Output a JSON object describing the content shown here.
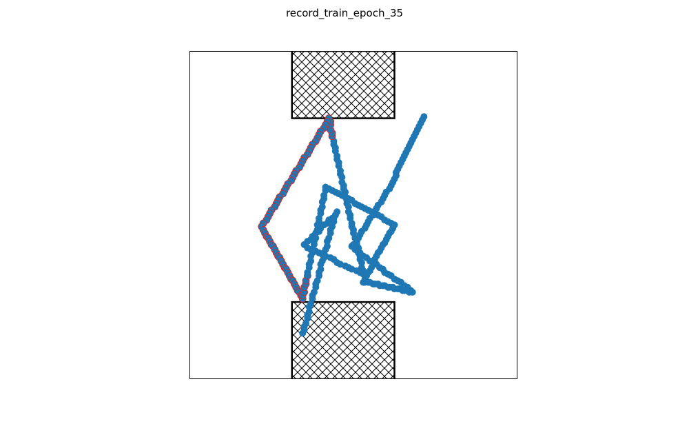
{
  "figure": {
    "title": "record_train_epoch_35"
  },
  "chart_data": {
    "type": "scatter",
    "title": "record_train_epoch_35",
    "xlabel": "",
    "ylabel": "",
    "xlim": [
      -1.0,
      1.0
    ],
    "ylim": [
      -1.0,
      1.0
    ],
    "axes_visible": false,
    "grid": false,
    "colors": {
      "point": "#1f77b4",
      "highlight_edge": "#d62728",
      "obstacle": "#000000"
    },
    "obstacles": [
      {
        "name": "top-obstacle",
        "x": [
          -0.375,
          0.25
        ],
        "y": [
          0.59,
          1.0
        ],
        "hatch": "cross"
      },
      {
        "name": "bottom-obstacle",
        "x": [
          -0.375,
          0.25
        ],
        "y": [
          -1.0,
          -0.53
        ],
        "hatch": "cross"
      }
    ],
    "trajectory": [
      [
        -0.31,
        -0.72
      ],
      [
        -0.3,
        -0.7
      ],
      [
        -0.3,
        -0.68
      ],
      [
        -0.29,
        -0.66
      ],
      [
        -0.28,
        -0.63
      ],
      [
        -0.28,
        -0.61
      ],
      [
        -0.27,
        -0.59
      ],
      [
        -0.27,
        -0.56
      ],
      [
        -0.26,
        -0.54
      ],
      [
        -0.25,
        -0.51
      ],
      [
        -0.25,
        -0.49
      ],
      [
        -0.24,
        -0.47
      ],
      [
        -0.23,
        -0.44
      ],
      [
        -0.23,
        -0.42
      ],
      [
        -0.22,
        -0.4
      ],
      [
        -0.21,
        -0.37
      ],
      [
        -0.21,
        -0.35
      ],
      [
        -0.2,
        -0.33
      ],
      [
        -0.2,
        -0.3
      ],
      [
        -0.19,
        -0.28
      ],
      [
        -0.18,
        -0.26
      ],
      [
        -0.18,
        -0.23
      ],
      [
        -0.17,
        -0.21
      ],
      [
        -0.16,
        -0.19
      ],
      [
        -0.16,
        -0.16
      ],
      [
        -0.15,
        -0.14
      ],
      [
        -0.14,
        -0.11
      ],
      [
        -0.14,
        -0.09
      ],
      [
        -0.13,
        -0.07
      ],
      [
        -0.12,
        -0.04
      ],
      [
        -0.12,
        -0.02
      ],
      [
        -0.11,
        0.0
      ],
      [
        -0.1,
        0.02
      ],
      [
        -0.11,
        0.0
      ],
      [
        -0.13,
        -0.02
      ],
      [
        -0.15,
        -0.03
      ],
      [
        -0.16,
        -0.05
      ],
      [
        -0.18,
        -0.06
      ],
      [
        -0.2,
        -0.08
      ],
      [
        -0.21,
        -0.1
      ],
      [
        -0.23,
        -0.11
      ],
      [
        -0.25,
        -0.13
      ],
      [
        -0.26,
        -0.15
      ],
      [
        -0.28,
        -0.16
      ],
      [
        -0.3,
        -0.18
      ],
      [
        -0.28,
        -0.2
      ],
      [
        -0.26,
        -0.21
      ],
      [
        -0.23,
        -0.22
      ],
      [
        -0.21,
        -0.23
      ],
      [
        -0.19,
        -0.24
      ],
      [
        -0.17,
        -0.25
      ],
      [
        -0.14,
        -0.26
      ],
      [
        -0.12,
        -0.27
      ],
      [
        -0.1,
        -0.29
      ],
      [
        -0.08,
        -0.3
      ],
      [
        -0.05,
        -0.31
      ],
      [
        -0.03,
        -0.32
      ],
      [
        -0.01,
        -0.33
      ],
      [
        0.02,
        -0.34
      ],
      [
        0.04,
        -0.35
      ],
      [
        0.06,
        -0.36
      ],
      [
        0.06,
        -0.34
      ],
      [
        0.05,
        -0.32
      ],
      [
        0.05,
        -0.29
      ],
      [
        0.04,
        -0.27
      ],
      [
        0.04,
        -0.25
      ],
      [
        0.03,
        -0.23
      ],
      [
        0.03,
        -0.2
      ],
      [
        0.02,
        -0.18
      ],
      [
        0.02,
        -0.16
      ],
      [
        0.01,
        -0.14
      ],
      [
        0.0,
        -0.11
      ],
      [
        0.0,
        -0.09
      ],
      [
        -0.01,
        -0.07
      ],
      [
        -0.01,
        -0.05
      ],
      [
        -0.02,
        -0.02
      ],
      [
        -0.02,
        0.0
      ],
      [
        -0.03,
        0.02
      ],
      [
        -0.03,
        0.05
      ],
      [
        -0.04,
        0.07
      ],
      [
        -0.04,
        0.09
      ],
      [
        -0.05,
        0.11
      ],
      [
        -0.05,
        0.14
      ],
      [
        -0.06,
        0.16
      ],
      [
        -0.06,
        0.18
      ],
      [
        -0.07,
        0.2
      ],
      [
        -0.07,
        0.23
      ],
      [
        -0.08,
        0.25
      ],
      [
        -0.08,
        0.27
      ],
      [
        -0.09,
        0.3
      ],
      [
        -0.09,
        0.32
      ],
      [
        -0.1,
        0.34
      ],
      [
        -0.1,
        0.36
      ],
      [
        -0.11,
        0.39
      ],
      [
        -0.11,
        0.41
      ],
      [
        -0.12,
        0.43
      ],
      [
        -0.12,
        0.45
      ],
      [
        -0.13,
        0.48
      ],
      [
        -0.13,
        0.5
      ],
      [
        -0.14,
        0.52
      ],
      [
        -0.14,
        0.55
      ],
      [
        -0.14,
        0.57
      ],
      [
        -0.15,
        0.59
      ],
      [
        -0.16,
        0.57
      ],
      [
        -0.17,
        0.55
      ],
      [
        -0.18,
        0.53
      ],
      [
        -0.2,
        0.51
      ],
      [
        -0.21,
        0.49
      ],
      [
        -0.22,
        0.47
      ],
      [
        -0.23,
        0.45
      ],
      [
        -0.25,
        0.43
      ],
      [
        -0.26,
        0.41
      ],
      [
        -0.27,
        0.39
      ],
      [
        -0.28,
        0.37
      ],
      [
        -0.3,
        0.35
      ],
      [
        -0.31,
        0.33
      ],
      [
        -0.32,
        0.31
      ],
      [
        -0.33,
        0.29
      ],
      [
        -0.35,
        0.27
      ],
      [
        -0.36,
        0.25
      ],
      [
        -0.37,
        0.23
      ],
      [
        -0.38,
        0.21
      ],
      [
        -0.4,
        0.19
      ],
      [
        -0.41,
        0.17
      ],
      [
        -0.42,
        0.15
      ],
      [
        -0.43,
        0.13
      ],
      [
        -0.45,
        0.11
      ],
      [
        -0.46,
        0.09
      ],
      [
        -0.47,
        0.07
      ],
      [
        -0.48,
        0.05
      ],
      [
        -0.5,
        0.03
      ],
      [
        -0.51,
        0.01
      ],
      [
        -0.52,
        -0.01
      ],
      [
        -0.53,
        -0.03
      ],
      [
        -0.55,
        -0.05
      ],
      [
        -0.56,
        -0.07
      ],
      [
        -0.55,
        -0.09
      ],
      [
        -0.54,
        -0.11
      ],
      [
        -0.53,
        -0.13
      ],
      [
        -0.52,
        -0.14
      ],
      [
        -0.51,
        -0.16
      ],
      [
        -0.5,
        -0.18
      ],
      [
        -0.49,
        -0.19
      ],
      [
        -0.48,
        -0.21
      ],
      [
        -0.47,
        -0.23
      ],
      [
        -0.46,
        -0.25
      ],
      [
        -0.45,
        -0.26
      ],
      [
        -0.44,
        -0.28
      ],
      [
        -0.43,
        -0.3
      ],
      [
        -0.42,
        -0.32
      ],
      [
        -0.41,
        -0.33
      ],
      [
        -0.4,
        -0.35
      ],
      [
        -0.39,
        -0.37
      ],
      [
        -0.38,
        -0.39
      ],
      [
        -0.37,
        -0.4
      ],
      [
        -0.36,
        -0.42
      ],
      [
        -0.35,
        -0.44
      ],
      [
        -0.34,
        -0.46
      ],
      [
        -0.33,
        -0.47
      ],
      [
        -0.32,
        -0.49
      ],
      [
        -0.31,
        -0.51
      ],
      [
        -0.31,
        -0.49
      ],
      [
        -0.3,
        -0.47
      ],
      [
        -0.3,
        -0.44
      ],
      [
        -0.29,
        -0.42
      ],
      [
        -0.29,
        -0.4
      ],
      [
        -0.28,
        -0.37
      ],
      [
        -0.28,
        -0.35
      ],
      [
        -0.27,
        -0.32
      ],
      [
        -0.27,
        -0.3
      ],
      [
        -0.26,
        -0.28
      ],
      [
        -0.26,
        -0.25
      ],
      [
        -0.25,
        -0.23
      ],
      [
        -0.25,
        -0.21
      ],
      [
        -0.24,
        -0.18
      ],
      [
        -0.24,
        -0.16
      ],
      [
        -0.23,
        -0.14
      ],
      [
        -0.23,
        -0.11
      ],
      [
        -0.22,
        -0.09
      ],
      [
        -0.22,
        -0.06
      ],
      [
        -0.21,
        -0.04
      ],
      [
        -0.21,
        -0.02
      ],
      [
        -0.2,
        0.01
      ],
      [
        -0.2,
        0.03
      ],
      [
        -0.19,
        0.05
      ],
      [
        -0.19,
        0.08
      ],
      [
        -0.18,
        0.1
      ],
      [
        -0.18,
        0.12
      ],
      [
        -0.17,
        0.15
      ],
      [
        -0.17,
        0.17
      ],
      [
        -0.15,
        0.16
      ],
      [
        -0.13,
        0.15
      ],
      [
        -0.11,
        0.14
      ],
      [
        -0.09,
        0.13
      ],
      [
        -0.07,
        0.12
      ],
      [
        -0.05,
        0.11
      ],
      [
        -0.03,
        0.1
      ],
      [
        -0.01,
        0.09
      ],
      [
        0.01,
        0.07
      ],
      [
        0.03,
        0.06
      ],
      [
        0.05,
        0.05
      ],
      [
        0.07,
        0.04
      ],
      [
        0.09,
        0.03
      ],
      [
        0.11,
        0.02
      ],
      [
        0.13,
        0.01
      ],
      [
        0.15,
        0.0
      ],
      [
        0.17,
        -0.01
      ],
      [
        0.19,
        -0.03
      ],
      [
        0.21,
        -0.04
      ],
      [
        0.23,
        -0.05
      ],
      [
        0.25,
        -0.06
      ],
      [
        0.24,
        -0.08
      ],
      [
        0.23,
        -0.1
      ],
      [
        0.22,
        -0.11
      ],
      [
        0.21,
        -0.13
      ],
      [
        0.2,
        -0.15
      ],
      [
        0.19,
        -0.17
      ],
      [
        0.18,
        -0.18
      ],
      [
        0.17,
        -0.2
      ],
      [
        0.16,
        -0.22
      ],
      [
        0.15,
        -0.23
      ],
      [
        0.14,
        -0.25
      ],
      [
        0.13,
        -0.27
      ],
      [
        0.13,
        -0.29
      ],
      [
        0.12,
        -0.3
      ],
      [
        0.11,
        -0.32
      ],
      [
        0.1,
        -0.34
      ],
      [
        0.09,
        -0.35
      ],
      [
        0.08,
        -0.37
      ],
      [
        0.07,
        -0.39
      ],
      [
        0.06,
        -0.41
      ],
      [
        0.07,
        -0.41
      ],
      [
        0.09,
        -0.41
      ],
      [
        0.1,
        -0.41
      ],
      [
        0.12,
        -0.42
      ],
      [
        0.13,
        -0.42
      ],
      [
        0.15,
        -0.42
      ],
      [
        0.16,
        -0.43
      ],
      [
        0.18,
        -0.43
      ],
      [
        0.19,
        -0.43
      ],
      [
        0.21,
        -0.44
      ],
      [
        0.22,
        -0.44
      ],
      [
        0.24,
        -0.44
      ],
      [
        0.25,
        -0.45
      ],
      [
        0.27,
        -0.45
      ],
      [
        0.28,
        -0.45
      ],
      [
        0.3,
        -0.46
      ],
      [
        0.31,
        -0.46
      ],
      [
        0.33,
        -0.46
      ],
      [
        0.34,
        -0.47
      ],
      [
        0.36,
        -0.47
      ],
      [
        0.35,
        -0.46
      ],
      [
        0.33,
        -0.44
      ],
      [
        0.31,
        -0.43
      ],
      [
        0.29,
        -0.41
      ],
      [
        0.27,
        -0.4
      ],
      [
        0.25,
        -0.39
      ],
      [
        0.23,
        -0.37
      ],
      [
        0.21,
        -0.36
      ],
      [
        0.19,
        -0.35
      ],
      [
        0.18,
        -0.33
      ],
      [
        0.16,
        -0.32
      ],
      [
        0.14,
        -0.3
      ],
      [
        0.12,
        -0.29
      ],
      [
        0.1,
        -0.28
      ],
      [
        0.08,
        -0.26
      ],
      [
        0.06,
        -0.25
      ],
      [
        0.04,
        -0.23
      ],
      [
        0.03,
        -0.22
      ],
      [
        0.01,
        -0.21
      ],
      [
        -0.01,
        -0.19
      ],
      [
        0.0,
        -0.18
      ],
      [
        0.02,
        -0.16
      ],
      [
        0.03,
        -0.14
      ],
      [
        0.04,
        -0.12
      ],
      [
        0.05,
        -0.1
      ],
      [
        0.07,
        -0.08
      ],
      [
        0.08,
        -0.06
      ],
      [
        0.09,
        -0.04
      ],
      [
        0.1,
        -0.02
      ],
      [
        0.12,
        0.0
      ],
      [
        0.13,
        0.02
      ],
      [
        0.14,
        0.04
      ],
      [
        0.15,
        0.06
      ],
      [
        0.17,
        0.08
      ],
      [
        0.18,
        0.1
      ],
      [
        0.19,
        0.12
      ],
      [
        0.2,
        0.14
      ],
      [
        0.22,
        0.16
      ],
      [
        0.23,
        0.18
      ],
      [
        0.24,
        0.2
      ],
      [
        0.25,
        0.22
      ],
      [
        0.26,
        0.24
      ],
      [
        0.26,
        0.26
      ],
      [
        0.27,
        0.28
      ],
      [
        0.28,
        0.3
      ],
      [
        0.29,
        0.32
      ],
      [
        0.3,
        0.34
      ],
      [
        0.31,
        0.36
      ],
      [
        0.32,
        0.38
      ],
      [
        0.33,
        0.4
      ],
      [
        0.34,
        0.42
      ],
      [
        0.35,
        0.44
      ],
      [
        0.36,
        0.46
      ],
      [
        0.37,
        0.48
      ],
      [
        0.38,
        0.5
      ],
      [
        0.39,
        0.52
      ],
      [
        0.4,
        0.54
      ],
      [
        0.41,
        0.56
      ],
      [
        0.42,
        0.58
      ],
      [
        0.43,
        0.6
      ]
    ]
  }
}
